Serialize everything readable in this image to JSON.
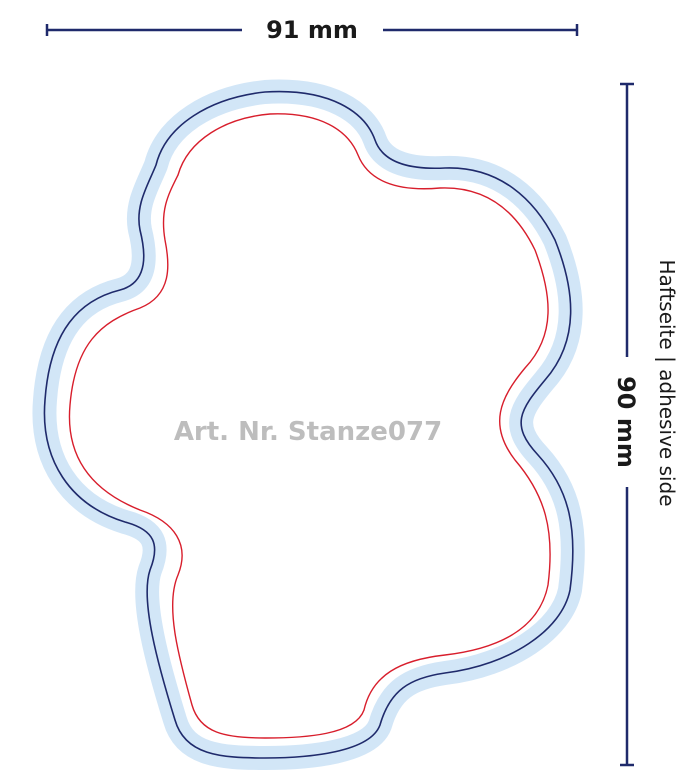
{
  "dimensions": {
    "width_label": "91 mm",
    "height_label": "90 mm"
  },
  "side_label": "Haftseite | adhesive side",
  "article_label": "Art. Nr. Stanze077",
  "colors": {
    "dimension_line": "#1f2a6b",
    "bleed_area": "#d2e6f7",
    "trim_line": "#1f2a6b",
    "cut_line": "#d81e2c",
    "article_text": "#bdbdbd"
  }
}
